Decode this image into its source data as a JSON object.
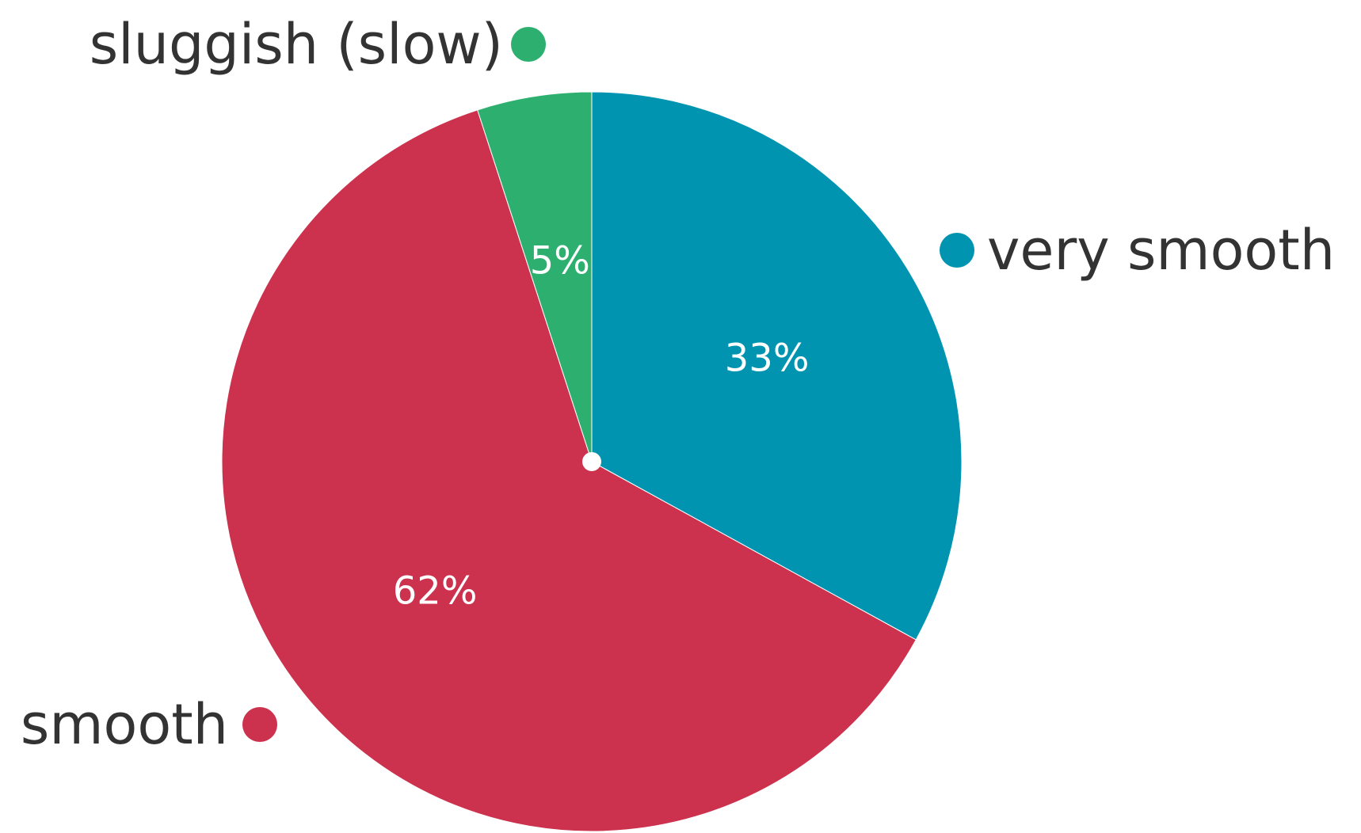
{
  "chart_data": {
    "type": "pie",
    "slices": [
      {
        "label": "very smooth",
        "value": 33,
        "value_label": "33%",
        "color": "#0094B0"
      },
      {
        "label": "smooth",
        "value": 62,
        "value_label": "62%",
        "color": "#CC314D"
      },
      {
        "label": "sluggish (slow)",
        "value": 5,
        "value_label": "5%",
        "color": "#2DB06F"
      }
    ],
    "start_angle": "12 o'clock",
    "direction": "clockwise",
    "legend": "labels outside slices with colored dots"
  }
}
